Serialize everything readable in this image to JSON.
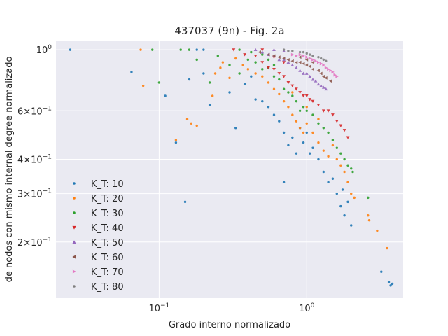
{
  "chart_data": {
    "type": "scatter",
    "title": "437037 (9n) - Fig. 2a",
    "xlabel": "Grado interno normalizado",
    "ylabel": "de nodos con mismo internal degree normalizado",
    "xscale": "log",
    "yscale": "log",
    "xlim": [
      0.02,
      4.5
    ],
    "ylim": [
      0.125,
      1.08
    ],
    "grid": true,
    "legend_position": "lower-left",
    "x_ticks": [
      {
        "value": 0.1,
        "base": "10",
        "exp": "−1"
      },
      {
        "value": 1,
        "base": "10",
        "exp": "0"
      }
    ],
    "y_ticks": [
      {
        "value": 1,
        "mant": "10",
        "exp": "0"
      },
      {
        "value": 0.6,
        "mant": "6×10",
        "exp": "−1"
      },
      {
        "value": 0.4,
        "mant": "4×10",
        "exp": "−1"
      },
      {
        "value": 0.3,
        "mant": "3×10",
        "exp": "−1"
      },
      {
        "value": 0.2,
        "mant": "2×10",
        "exp": "−1"
      }
    ],
    "series": [
      {
        "name": "K_T: 10",
        "color": "#1f77b4",
        "marker": "circle",
        "points": [
          [
            0.025,
            1.0
          ],
          [
            0.065,
            0.83
          ],
          [
            0.11,
            0.68
          ],
          [
            0.13,
            0.46
          ],
          [
            0.22,
            0.63
          ],
          [
            0.3,
            0.7
          ],
          [
            0.33,
            0.52
          ],
          [
            0.42,
            0.8
          ],
          [
            0.5,
            0.65
          ],
          [
            0.55,
            0.62
          ],
          [
            0.6,
            0.58
          ],
          [
            0.65,
            0.55
          ],
          [
            0.7,
            0.5
          ],
          [
            0.75,
            0.45
          ],
          [
            0.8,
            0.48
          ],
          [
            0.85,
            0.42
          ],
          [
            0.9,
            0.52
          ],
          [
            0.95,
            0.46
          ],
          [
            1.0,
            0.5
          ],
          [
            1.05,
            0.42
          ],
          [
            1.1,
            0.44
          ],
          [
            1.2,
            0.4
          ],
          [
            1.3,
            0.36
          ],
          [
            1.4,
            0.33
          ],
          [
            1.5,
            0.34
          ],
          [
            1.6,
            0.3
          ],
          [
            1.7,
            0.27
          ],
          [
            1.75,
            0.31
          ],
          [
            1.8,
            0.25
          ],
          [
            1.9,
            0.28
          ],
          [
            2.0,
            0.23
          ],
          [
            3.2,
            0.156
          ],
          [
            3.6,
            0.143
          ],
          [
            3.7,
            0.139
          ],
          [
            3.8,
            0.141
          ],
          [
            0.15,
            0.28
          ],
          [
            0.7,
            0.33
          ],
          [
            0.45,
            0.66
          ],
          [
            0.38,
            0.75
          ],
          [
            0.16,
            0.78
          ],
          [
            0.2,
            0.82
          ],
          [
            0.2,
            1.0
          ],
          [
            0.18,
            1.0
          ]
        ]
      },
      {
        "name": "K_T: 20",
        "color": "#ff7f0e",
        "marker": "circle",
        "points": [
          [
            0.075,
            1.0
          ],
          [
            0.078,
            0.74
          ],
          [
            0.13,
            0.47
          ],
          [
            0.155,
            0.56
          ],
          [
            0.165,
            0.54
          ],
          [
            0.18,
            0.53
          ],
          [
            0.23,
            0.68
          ],
          [
            0.24,
            0.82
          ],
          [
            0.26,
            0.86
          ],
          [
            0.27,
            0.9
          ],
          [
            0.3,
            0.79
          ],
          [
            0.33,
            0.93
          ],
          [
            0.37,
            0.88
          ],
          [
            0.4,
            0.85
          ],
          [
            0.45,
            0.82
          ],
          [
            0.5,
            0.8
          ],
          [
            0.55,
            0.76
          ],
          [
            0.6,
            0.72
          ],
          [
            0.65,
            0.69
          ],
          [
            0.7,
            0.65
          ],
          [
            0.75,
            0.62
          ],
          [
            0.8,
            0.58
          ],
          [
            0.85,
            0.55
          ],
          [
            0.9,
            0.52
          ],
          [
            0.95,
            0.5
          ],
          [
            1.0,
            0.54
          ],
          [
            1.1,
            0.5
          ],
          [
            1.2,
            0.46
          ],
          [
            1.3,
            0.43
          ],
          [
            1.4,
            0.41
          ],
          [
            1.5,
            0.45
          ],
          [
            1.6,
            0.4
          ],
          [
            1.7,
            0.38
          ],
          [
            1.8,
            0.36
          ],
          [
            1.9,
            0.33
          ],
          [
            2.0,
            0.3
          ],
          [
            2.1,
            0.29
          ],
          [
            2.6,
            0.25
          ],
          [
            2.65,
            0.24
          ],
          [
            3.0,
            0.22
          ],
          [
            3.5,
            0.19
          ],
          [
            0.8,
            0.7
          ],
          [
            1.0,
            0.62
          ],
          [
            1.2,
            0.56
          ]
        ]
      },
      {
        "name": "K_T: 30",
        "color": "#2ca02c",
        "marker": "circle",
        "points": [
          [
            0.09,
            1.0
          ],
          [
            0.1,
            0.76
          ],
          [
            0.14,
            1.0
          ],
          [
            0.16,
            1.0
          ],
          [
            0.18,
            0.92
          ],
          [
            0.22,
            0.76
          ],
          [
            0.25,
            0.95
          ],
          [
            0.3,
            0.88
          ],
          [
            0.35,
            0.82
          ],
          [
            0.4,
            0.92
          ],
          [
            0.45,
            0.9
          ],
          [
            0.5,
            0.85
          ],
          [
            0.55,
            0.86
          ],
          [
            0.6,
            0.8
          ],
          [
            0.65,
            0.78
          ],
          [
            0.7,
            0.72
          ],
          [
            0.75,
            0.7
          ],
          [
            0.8,
            0.68
          ],
          [
            0.85,
            0.65
          ],
          [
            0.9,
            0.6
          ],
          [
            0.95,
            0.62
          ],
          [
            1.0,
            0.6
          ],
          [
            1.1,
            0.58
          ],
          [
            1.2,
            0.54
          ],
          [
            1.3,
            0.52
          ],
          [
            1.4,
            0.5
          ],
          [
            1.5,
            0.47
          ],
          [
            1.6,
            0.44
          ],
          [
            1.7,
            0.42
          ],
          [
            1.8,
            0.4
          ],
          [
            1.9,
            0.38
          ],
          [
            2.0,
            0.37
          ],
          [
            2.05,
            0.36
          ],
          [
            2.6,
            0.29
          ],
          [
            0.35,
            1.0
          ],
          [
            0.42,
            0.98
          ],
          [
            0.5,
            0.96
          ],
          [
            0.55,
            0.92
          ],
          [
            0.6,
            0.88
          ]
        ]
      },
      {
        "name": "K_T: 40",
        "color": "#d62728",
        "marker": "triangle-down",
        "points": [
          [
            0.32,
            1.0
          ],
          [
            0.38,
            0.96
          ],
          [
            0.45,
            0.95
          ],
          [
            0.5,
            0.9
          ],
          [
            0.55,
            0.86
          ],
          [
            0.6,
            0.85
          ],
          [
            0.65,
            0.82
          ],
          [
            0.7,
            0.8
          ],
          [
            0.75,
            0.76
          ],
          [
            0.8,
            0.74
          ],
          [
            0.85,
            0.72
          ],
          [
            0.9,
            0.7
          ],
          [
            0.95,
            0.68
          ],
          [
            1.0,
            0.68
          ],
          [
            1.05,
            0.66
          ],
          [
            1.1,
            0.65
          ],
          [
            1.2,
            0.63
          ],
          [
            1.3,
            0.6
          ],
          [
            1.4,
            0.6
          ],
          [
            1.5,
            0.58
          ],
          [
            1.6,
            0.55
          ],
          [
            1.7,
            0.53
          ],
          [
            1.8,
            0.51
          ],
          [
            1.9,
            0.48
          ],
          [
            0.5,
            1.0
          ],
          [
            0.6,
            0.94
          ],
          [
            0.7,
            0.9
          ]
        ]
      },
      {
        "name": "K_T: 50",
        "color": "#9467bd",
        "marker": "triangle-up",
        "points": [
          [
            0.45,
            1.0
          ],
          [
            0.5,
            0.98
          ],
          [
            0.55,
            0.96
          ],
          [
            0.6,
            0.95
          ],
          [
            0.65,
            0.92
          ],
          [
            0.7,
            0.92
          ],
          [
            0.75,
            0.9
          ],
          [
            0.8,
            0.88
          ],
          [
            0.85,
            0.86
          ],
          [
            0.9,
            0.84
          ],
          [
            0.95,
            0.82
          ],
          [
            1.0,
            0.82
          ],
          [
            1.05,
            0.8
          ],
          [
            1.1,
            0.78
          ],
          [
            1.15,
            0.77
          ],
          [
            1.2,
            0.75
          ],
          [
            1.25,
            0.74
          ],
          [
            1.3,
            0.73
          ],
          [
            1.35,
            0.72
          ],
          [
            0.6,
            1.0
          ],
          [
            0.7,
            0.99
          ]
        ]
      },
      {
        "name": "K_T: 60",
        "color": "#8c564b",
        "marker": "triangle-left",
        "points": [
          [
            0.48,
            0.98
          ],
          [
            0.55,
            0.96
          ],
          [
            0.6,
            0.95
          ],
          [
            0.65,
            0.94
          ],
          [
            0.7,
            0.93
          ],
          [
            0.75,
            0.92
          ],
          [
            0.8,
            0.91
          ],
          [
            0.85,
            0.9
          ],
          [
            0.9,
            0.9
          ],
          [
            0.95,
            0.89
          ],
          [
            1.0,
            0.88
          ],
          [
            1.05,
            0.87
          ],
          [
            1.1,
            0.85
          ],
          [
            1.2,
            0.84
          ],
          [
            1.25,
            0.82
          ],
          [
            1.3,
            0.8
          ],
          [
            1.35,
            0.79
          ],
          [
            1.45,
            0.77
          ],
          [
            0.9,
            0.94
          ],
          [
            1.0,
            0.92
          ],
          [
            1.1,
            0.9
          ]
        ]
      },
      {
        "name": "K_T: 70",
        "color": "#e377c2",
        "marker": "triangle-right",
        "points": [
          [
            0.8,
            0.96
          ],
          [
            0.85,
            0.95
          ],
          [
            0.9,
            0.96
          ],
          [
            0.95,
            0.95
          ],
          [
            1.0,
            0.94
          ],
          [
            1.05,
            0.93
          ],
          [
            1.1,
            0.92
          ],
          [
            1.15,
            0.91
          ],
          [
            1.2,
            0.9
          ],
          [
            1.25,
            0.89
          ],
          [
            1.3,
            0.88
          ],
          [
            1.35,
            0.86
          ],
          [
            1.4,
            0.85
          ],
          [
            1.45,
            0.84
          ],
          [
            1.5,
            0.83
          ],
          [
            1.55,
            0.81
          ],
          [
            1.6,
            0.8
          ]
        ]
      },
      {
        "name": "K_T: 80",
        "color": "#7f7f7f",
        "marker": "circle",
        "points": [
          [
            0.7,
            1.0
          ],
          [
            0.75,
            0.99
          ],
          [
            0.8,
            0.99
          ],
          [
            0.9,
            0.98
          ],
          [
            0.95,
            0.98
          ],
          [
            1.0,
            0.97
          ],
          [
            1.05,
            0.96
          ],
          [
            1.1,
            0.95
          ],
          [
            1.2,
            0.94
          ],
          [
            1.25,
            0.93
          ],
          [
            1.3,
            0.92
          ],
          [
            1.35,
            0.91
          ]
        ]
      }
    ]
  }
}
